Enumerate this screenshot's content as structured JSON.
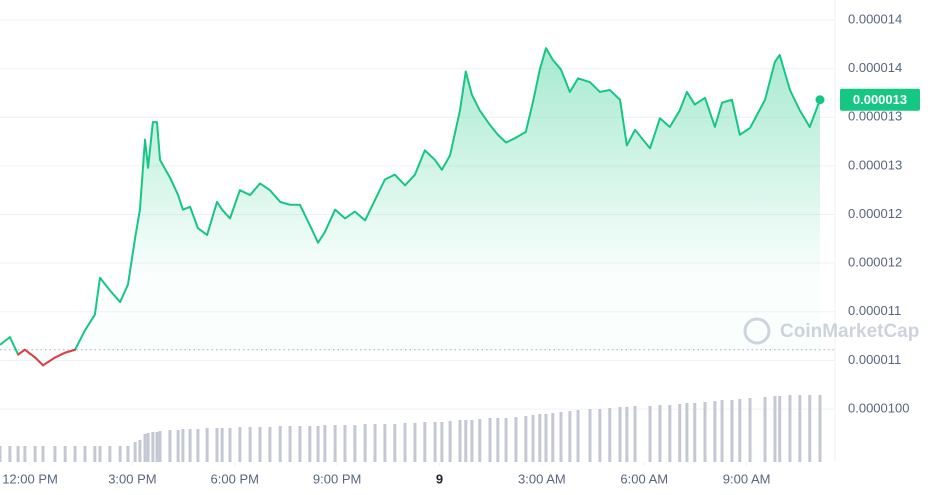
{
  "chart_data": {
    "type": "line",
    "x": [
      -0.88,
      -0.59,
      -0.35,
      -0.15,
      0.15,
      0.38,
      0.73,
      1.03,
      1.32,
      1.61,
      1.9,
      2.05,
      2.34,
      2.64,
      2.87,
      3.08,
      3.22,
      3.37,
      3.46,
      3.6,
      3.72,
      3.81,
      4.1,
      4.34,
      4.48,
      4.69,
      4.92,
      5.19,
      5.48,
      5.63,
      5.86,
      6.15,
      6.45,
      6.74,
      7.03,
      7.33,
      7.62,
      7.91,
      8.2,
      8.44,
      8.64,
      8.94,
      9.23,
      9.52,
      9.82,
      10.11,
      10.4,
      10.69,
      10.99,
      11.28,
      11.57,
      11.87,
      12.07,
      12.31,
      12.6,
      12.77,
      12.95,
      13.18,
      13.48,
      13.71,
      13.95,
      14.24,
      14.53,
      14.74,
      14.94,
      15.12,
      15.32,
      15.56,
      15.82,
      16.06,
      16.41,
      16.7,
      16.99,
      17.29,
      17.49,
      17.73,
      18.17,
      18.46,
      18.75,
      19.04,
      19.25,
      19.48,
      19.78,
      20.07,
      20.28,
      20.57,
      20.8,
      21.1,
      21.54,
      21.83,
      21.97,
      22.27,
      22.56,
      22.85,
      23.15
    ],
    "series": [
      {
        "color": "#16c784",
        "down_color": "#ea3943",
        "values": [
          1.066e-05,
          1.074e-05,
          1.056e-05,
          1.061e-05,
          1.053e-05,
          1.045e-05,
          1.053e-05,
          1.058e-05,
          1.061e-05,
          1.081e-05,
          1.097e-05,
          1.135e-05,
          1.122e-05,
          1.11e-05,
          1.128e-05,
          1.176e-05,
          1.205e-05,
          1.277e-05,
          1.248e-05,
          1.295e-05,
          1.295e-05,
          1.256e-05,
          1.238e-05,
          1.22e-05,
          1.205e-05,
          1.208e-05,
          1.186e-05,
          1.179e-05,
          1.213e-05,
          1.205e-05,
          1.196e-05,
          1.225e-05,
          1.22e-05,
          1.232e-05,
          1.225e-05,
          1.213e-05,
          1.21e-05,
          1.21e-05,
          1.189e-05,
          1.171e-05,
          1.182e-05,
          1.205e-05,
          1.196e-05,
          1.203e-05,
          1.194e-05,
          1.215e-05,
          1.236e-05,
          1.241e-05,
          1.23e-05,
          1.241e-05,
          1.266e-05,
          1.256e-05,
          1.246e-05,
          1.261e-05,
          1.307e-05,
          1.347e-05,
          1.323e-05,
          1.307e-05,
          1.292e-05,
          1.282e-05,
          1.274e-05,
          1.279e-05,
          1.285e-05,
          1.316e-05,
          1.349e-05,
          1.371e-05,
          1.359e-05,
          1.349e-05,
          1.326e-05,
          1.34e-05,
          1.336e-05,
          1.326e-05,
          1.328e-05,
          1.318e-05,
          1.271e-05,
          1.287e-05,
          1.268e-05,
          1.299e-05,
          1.29e-05,
          1.307e-05,
          1.326e-05,
          1.313e-05,
          1.32e-05,
          1.29e-05,
          1.315e-05,
          1.318e-05,
          1.282e-05,
          1.289e-05,
          1.318e-05,
          1.357e-05,
          1.364e-05,
          1.328e-05,
          1.307e-05,
          1.29e-05,
          1.318e-05
        ]
      }
    ],
    "volume": [
      16,
      16,
      16,
      16,
      16,
      16,
      16,
      16,
      16,
      16,
      16,
      16,
      16,
      16,
      16,
      20,
      22,
      28,
      29,
      30,
      30,
      31,
      32,
      32,
      33,
      33,
      33,
      34,
      34,
      34,
      34,
      35,
      35,
      35,
      35,
      36,
      36,
      36,
      36,
      36,
      37,
      37,
      37,
      37,
      38,
      38,
      38,
      38,
      39,
      39,
      40,
      40,
      40,
      41,
      42,
      42,
      42,
      43,
      44,
      44,
      44,
      45,
      46,
      47,
      48,
      48,
      49,
      50,
      51,
      52,
      53,
      53,
      54,
      55,
      55,
      56,
      56,
      57,
      57,
      58,
      59,
      59,
      60,
      61,
      62,
      62,
      63,
      64,
      65,
      66,
      66,
      67,
      67,
      67,
      67
    ],
    "volume_lim": [
      0,
      100
    ],
    "volume_color": "#c4c8d4",
    "open_price": 1.061e-05,
    "price_label": "0.000013",
    "watermark": "CoinMarketCap",
    "xlim": [
      -0.88,
      23.59
    ],
    "xticks": [
      {
        "value": 0,
        "label": "12:00 PM"
      },
      {
        "value": 3,
        "label": "3:00 PM"
      },
      {
        "value": 6,
        "label": "6:00 PM"
      },
      {
        "value": 9,
        "label": "9:00 PM"
      },
      {
        "value": 12,
        "label": "9"
      },
      {
        "value": 15,
        "label": "3:00 AM"
      },
      {
        "value": 18,
        "label": "6:00 AM"
      },
      {
        "value": 21,
        "label": "9:00 AM"
      }
    ],
    "ylim": [
      9.6e-06,
      1.42e-05
    ],
    "yticks": [
      {
        "value": 1.4e-05,
        "label": "0.000014"
      },
      {
        "value": 1.35e-05,
        "label": "0.000014"
      },
      {
        "value": 1.3e-05,
        "label": "0.000013"
      },
      {
        "value": 1.25e-05,
        "label": "0.000013"
      },
      {
        "value": 1.2e-05,
        "label": "0.000012"
      },
      {
        "value": 1.15e-05,
        "label": "0.000012"
      },
      {
        "value": 1.1e-05,
        "label": "0.000011"
      },
      {
        "value": 1.05e-05,
        "label": "0.000011"
      },
      {
        "value": 1e-05,
        "label": "0.0000100"
      }
    ],
    "grid": true
  }
}
